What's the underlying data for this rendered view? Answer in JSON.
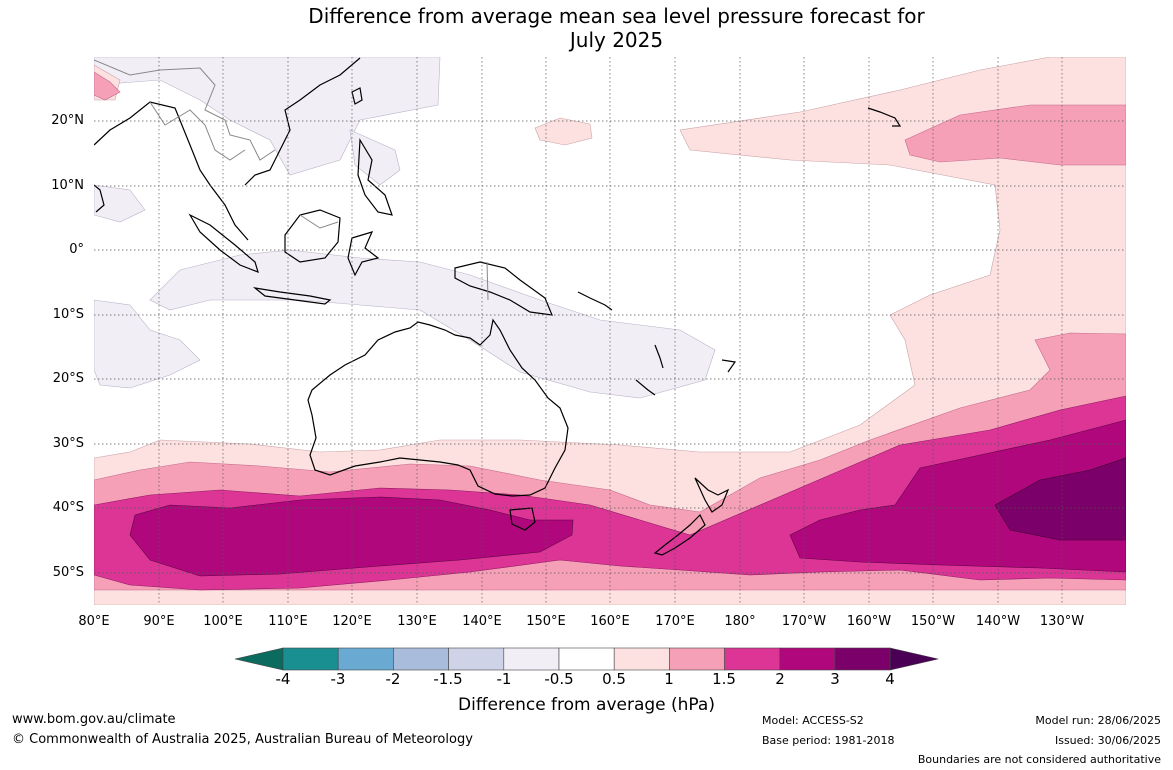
{
  "title_line1": "Difference from average mean sea level pressure forecast for",
  "title_line2": "July 2025",
  "lat_labels": [
    "20°N",
    "10°N",
    "0°",
    "10°S",
    "20°S",
    "30°S",
    "40°S",
    "50°S"
  ],
  "lon_labels": [
    "80°E",
    "90°E",
    "100°E",
    "110°E",
    "120°E",
    "130°E",
    "140°E",
    "150°E",
    "160°E",
    "170°E",
    "180°",
    "170°W",
    "160°W",
    "150°W",
    "140°W",
    "130°W"
  ],
  "colorbar": {
    "ticks": [
      "-4",
      "-3",
      "-2",
      "-1.5",
      "-1",
      "-0.5",
      "0.5",
      "1",
      "1.5",
      "2",
      "3",
      "4"
    ],
    "colors": [
      "#0c6b5f",
      "#1a8f92",
      "#6aaad2",
      "#a9bcdc",
      "#cfd3e7",
      "#f1eef5",
      "#ffffff",
      "#fde0e0",
      "#f6a0b8",
      "#dc3596",
      "#b0077d",
      "#7c0069",
      "#4a0055"
    ],
    "title": "Difference from average (hPa)"
  },
  "footer": {
    "website": "www.bom.gov.au/climate",
    "copyright": "© Commonwealth of Australia 2025, Australian Bureau of Meteorology",
    "model": "Model: ACCESS-S2",
    "base_period": "Base period: 1981-2018",
    "model_run": "Model run: 28/06/2025",
    "issued": "Issued: 30/06/2025",
    "disclaimer": "Boundaries are not considered authoritative"
  }
}
